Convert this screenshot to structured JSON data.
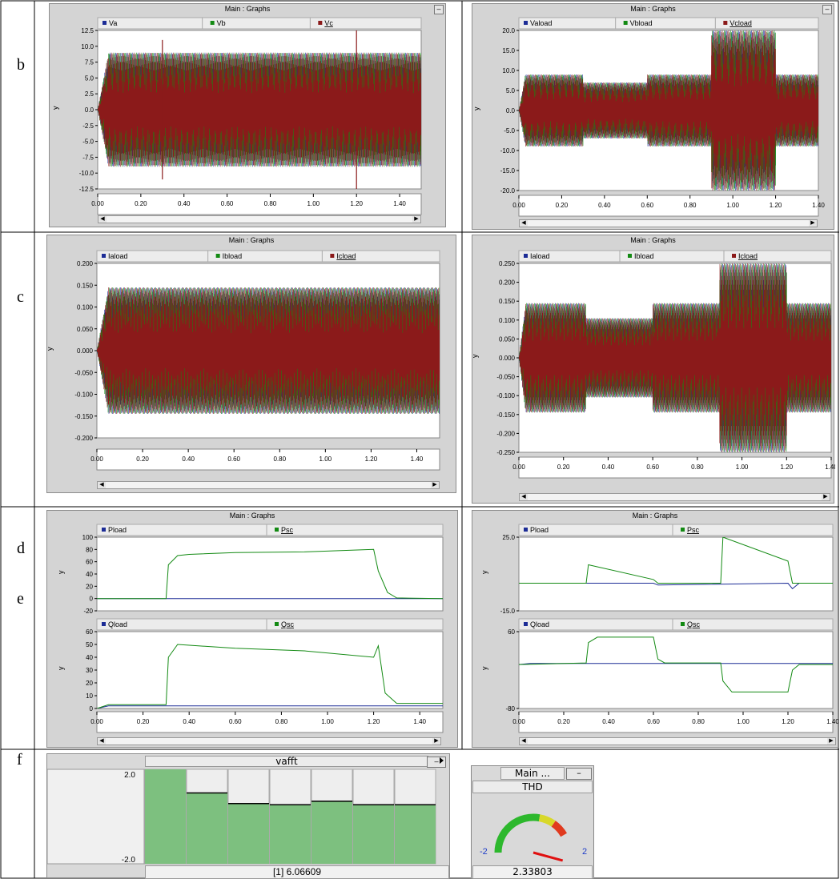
{
  "rows": [
    "b",
    "c",
    "d",
    "e",
    "f"
  ],
  "panel_title": "Main : Graphs",
  "y_axis_label": "y",
  "x_ticks": [
    "0.00",
    "0.20",
    "0.40",
    "0.60",
    "0.80",
    "1.00",
    "1.20",
    "1.40"
  ],
  "chart_data": [
    {
      "id": "b-left",
      "type": "line",
      "title": "Main : Graphs",
      "ylabel": "y",
      "legend": [
        "Va",
        "Vb",
        "Vc"
      ],
      "colors": [
        "#1c2c96",
        "#138a13",
        "#8b1a1a"
      ],
      "xlim": [
        0,
        1.5
      ],
      "ylim": [
        -12.5,
        12.5
      ],
      "yticks": [
        "12.5",
        "10.0",
        "7.5",
        "5.0",
        "2.5",
        "0.0",
        "-2.5",
        "-5.0",
        "-7.5",
        "-10.0",
        "-12.5"
      ],
      "series": [
        {
          "name": "Va",
          "amplitude_envelope": [
            [
              0,
              0
            ],
            [
              0.05,
              9
            ],
            [
              1.5,
              9
            ]
          ],
          "frequency_hz": 50
        },
        {
          "name": "Vb",
          "amplitude_envelope": [
            [
              0,
              0
            ],
            [
              0.05,
              9
            ],
            [
              1.5,
              9
            ]
          ],
          "frequency_hz": 50
        },
        {
          "name": "Vc",
          "amplitude_envelope": [
            [
              0,
              0
            ],
            [
              0.05,
              9
            ],
            [
              1.5,
              9
            ]
          ],
          "frequency_hz": 50
        }
      ],
      "spikes": [
        [
          0.3,
          11
        ],
        [
          1.2,
          12.5
        ]
      ]
    },
    {
      "id": "b-right",
      "type": "line",
      "title": "Main : Graphs",
      "ylabel": "y",
      "legend": [
        "Vaload",
        "Vbload",
        "Vcload"
      ],
      "colors": [
        "#1c2c96",
        "#138a13",
        "#8b1a1a"
      ],
      "xlim": [
        0,
        1.4
      ],
      "ylim": [
        -20,
        20
      ],
      "yticks": [
        "20.0",
        "15.0",
        "10.0",
        "5.0",
        "0.0",
        "-5.0",
        "-10.0",
        "-15.0",
        "-20.0"
      ],
      "series": [
        {
          "name": "Vaload",
          "amplitude_envelope": [
            [
              0,
              0
            ],
            [
              0.03,
              9
            ],
            [
              0.3,
              9
            ],
            [
              0.3,
              7
            ],
            [
              0.6,
              7
            ],
            [
              0.6,
              9
            ],
            [
              0.9,
              9
            ],
            [
              0.9,
              20
            ],
            [
              1.2,
              20
            ],
            [
              1.2,
              9
            ],
            [
              1.4,
              9
            ]
          ]
        },
        {
          "name": "Vbload",
          "amplitude_envelope": [
            [
              0,
              0
            ],
            [
              0.03,
              9
            ],
            [
              0.3,
              9
            ],
            [
              0.3,
              7
            ],
            [
              0.6,
              7
            ],
            [
              0.6,
              9
            ],
            [
              0.9,
              9
            ],
            [
              0.9,
              20
            ],
            [
              1.2,
              20
            ],
            [
              1.2,
              9
            ],
            [
              1.4,
              9
            ]
          ]
        },
        {
          "name": "Vcload",
          "amplitude_envelope": [
            [
              0,
              0
            ],
            [
              0.03,
              9
            ],
            [
              0.3,
              9
            ],
            [
              0.3,
              7
            ],
            [
              0.6,
              7
            ],
            [
              0.6,
              9
            ],
            [
              0.9,
              9
            ],
            [
              0.9,
              20
            ],
            [
              1.2,
              20
            ],
            [
              1.2,
              9
            ],
            [
              1.4,
              9
            ]
          ]
        }
      ]
    },
    {
      "id": "c-left",
      "type": "line",
      "title": "Main : Graphs",
      "ylabel": "y",
      "legend": [
        "Iaload",
        "Ibload",
        "Icload"
      ],
      "colors": [
        "#1c2c96",
        "#138a13",
        "#8b1a1a"
      ],
      "xlim": [
        0,
        1.5
      ],
      "ylim": [
        -0.2,
        0.2
      ],
      "yticks": [
        "0.200",
        "0.150",
        "0.100",
        "0.050",
        "0.000",
        "-0.050",
        "-0.100",
        "-0.150",
        "-0.200"
      ],
      "series": [
        {
          "name": "Iaload",
          "amplitude_envelope": [
            [
              0,
              0
            ],
            [
              0.05,
              0.145
            ],
            [
              1.5,
              0.145
            ]
          ]
        },
        {
          "name": "Ibload",
          "amplitude_envelope": [
            [
              0,
              0
            ],
            [
              0.05,
              0.145
            ],
            [
              1.5,
              0.145
            ]
          ]
        },
        {
          "name": "Icload",
          "amplitude_envelope": [
            [
              0,
              0
            ],
            [
              0.05,
              0.145
            ],
            [
              1.5,
              0.145
            ]
          ]
        }
      ]
    },
    {
      "id": "c-right",
      "type": "line",
      "title": "Main : Graphs",
      "ylabel": "y",
      "legend": [
        "Iaload",
        "Ibload",
        "Icload"
      ],
      "colors": [
        "#1c2c96",
        "#138a13",
        "#8b1a1a"
      ],
      "xlim": [
        0,
        1.4
      ],
      "ylim": [
        -0.25,
        0.25
      ],
      "yticks": [
        "0.250",
        "0.200",
        "0.150",
        "0.100",
        "0.050",
        "0.000",
        "-0.050",
        "-0.100",
        "-0.150",
        "-0.200",
        "-0.250"
      ],
      "series": [
        {
          "name": "Iaload",
          "amplitude_envelope": [
            [
              0,
              0
            ],
            [
              0.03,
              0.145
            ],
            [
              0.3,
              0.145
            ],
            [
              0.3,
              0.105
            ],
            [
              0.6,
              0.105
            ],
            [
              0.6,
              0.145
            ],
            [
              0.9,
              0.145
            ],
            [
              0.9,
              0.25
            ],
            [
              1.2,
              0.25
            ],
            [
              1.2,
              0.145
            ],
            [
              1.4,
              0.145
            ]
          ]
        },
        {
          "name": "Ibload",
          "amplitude_envelope": [
            [
              0,
              0
            ],
            [
              0.03,
              0.145
            ],
            [
              0.3,
              0.145
            ],
            [
              0.3,
              0.105
            ],
            [
              0.6,
              0.105
            ],
            [
              0.6,
              0.145
            ],
            [
              0.9,
              0.145
            ],
            [
              0.9,
              0.25
            ],
            [
              1.2,
              0.25
            ],
            [
              1.2,
              0.145
            ],
            [
              1.4,
              0.145
            ]
          ]
        },
        {
          "name": "Icload",
          "amplitude_envelope": [
            [
              0,
              0
            ],
            [
              0.03,
              0.145
            ],
            [
              0.3,
              0.145
            ],
            [
              0.3,
              0.105
            ],
            [
              0.6,
              0.105
            ],
            [
              0.6,
              0.145
            ],
            [
              0.9,
              0.145
            ],
            [
              0.9,
              0.25
            ],
            [
              1.2,
              0.25
            ],
            [
              1.2,
              0.145
            ],
            [
              1.4,
              0.145
            ]
          ]
        }
      ]
    },
    {
      "id": "d-left",
      "type": "line",
      "title": "Main : Graphs",
      "ylabel": "y",
      "legend": [
        "Pload",
        "Psc"
      ],
      "colors": [
        "#1c2c96",
        "#138a13"
      ],
      "xlim": [
        0,
        1.5
      ],
      "ylim": [
        -20,
        100
      ],
      "yticks": [
        "100",
        "80",
        "60",
        "40",
        "20",
        "0",
        "-20"
      ],
      "series": [
        {
          "name": "Pload",
          "points": [
            [
              0,
              0
            ],
            [
              1.5,
              0
            ]
          ]
        },
        {
          "name": "Psc",
          "points": [
            [
              0,
              0
            ],
            [
              0.3,
              0
            ],
            [
              0.31,
              55
            ],
            [
              0.35,
              70
            ],
            [
              0.4,
              72
            ],
            [
              0.6,
              75
            ],
            [
              0.9,
              76
            ],
            [
              1.2,
              80
            ],
            [
              1.22,
              45
            ],
            [
              1.26,
              10
            ],
            [
              1.3,
              1
            ],
            [
              1.5,
              0
            ]
          ]
        }
      ]
    },
    {
      "id": "e-left",
      "type": "line",
      "title": "",
      "ylabel": "y",
      "legend": [
        "Qload",
        "Qsc"
      ],
      "colors": [
        "#1c2c96",
        "#138a13"
      ],
      "xlim": [
        0,
        1.5
      ],
      "ylim": [
        0,
        60
      ],
      "yticks": [
        "60",
        "50",
        "40",
        "30",
        "20",
        "10",
        "0"
      ],
      "series": [
        {
          "name": "Qload",
          "points": [
            [
              0,
              0
            ],
            [
              0.05,
              2
            ],
            [
              1.5,
              2
            ]
          ]
        },
        {
          "name": "Qsc",
          "points": [
            [
              0,
              0
            ],
            [
              0.05,
              3
            ],
            [
              0.3,
              3
            ],
            [
              0.31,
              40
            ],
            [
              0.35,
              50
            ],
            [
              0.6,
              47
            ],
            [
              0.9,
              45
            ],
            [
              1.2,
              40
            ],
            [
              1.22,
              49
            ],
            [
              1.25,
              12
            ],
            [
              1.3,
              4
            ],
            [
              1.5,
              4
            ]
          ]
        }
      ]
    },
    {
      "id": "d-right",
      "type": "line",
      "title": "Main : Graphs",
      "ylabel": "y",
      "legend": [
        "Pload",
        "Psc"
      ],
      "colors": [
        "#1c2c96",
        "#138a13"
      ],
      "xlim": [
        0,
        1.4
      ],
      "ylim": [
        -15,
        25
      ],
      "yticks": [
        "25.0",
        "-15.0"
      ],
      "series": [
        {
          "name": "Pload",
          "points": [
            [
              0,
              0
            ],
            [
              0.6,
              0
            ],
            [
              0.62,
              -1
            ],
            [
              1.2,
              0
            ],
            [
              1.22,
              -3
            ],
            [
              1.25,
              0
            ],
            [
              1.4,
              0
            ]
          ]
        },
        {
          "name": "Psc",
          "points": [
            [
              0,
              0
            ],
            [
              0.3,
              0
            ],
            [
              0.31,
              10
            ],
            [
              0.6,
              2
            ],
            [
              0.62,
              0
            ],
            [
              0.9,
              0
            ],
            [
              0.91,
              25
            ],
            [
              1.2,
              12
            ],
            [
              1.22,
              0
            ],
            [
              1.4,
              0
            ]
          ]
        }
      ]
    },
    {
      "id": "e-right",
      "type": "line",
      "title": "",
      "ylabel": "y",
      "legend": [
        "Qload",
        "Qsc"
      ],
      "colors": [
        "#1c2c96",
        "#138a13"
      ],
      "xlim": [
        0,
        1.4
      ],
      "ylim": [
        -80,
        60
      ],
      "yticks": [
        "60",
        "-80"
      ],
      "series": [
        {
          "name": "Qload",
          "points": [
            [
              0,
              0
            ],
            [
              0.05,
              2
            ],
            [
              1.4,
              2
            ]
          ]
        },
        {
          "name": "Qsc",
          "points": [
            [
              0,
              0
            ],
            [
              0.3,
              3
            ],
            [
              0.31,
              40
            ],
            [
              0.35,
              50
            ],
            [
              0.6,
              50
            ],
            [
              0.62,
              10
            ],
            [
              0.65,
              3
            ],
            [
              0.9,
              3
            ],
            [
              0.91,
              -30
            ],
            [
              0.95,
              -50
            ],
            [
              1.2,
              -50
            ],
            [
              1.22,
              -10
            ],
            [
              1.25,
              0
            ],
            [
              1.4,
              0
            ]
          ]
        }
      ]
    },
    {
      "id": "f-vafft",
      "type": "bar",
      "title": "vafft",
      "ylim": [
        -2.0,
        2.0
      ],
      "yticks": [
        "2.0",
        "-2.0"
      ],
      "values": [
        2.0,
        1.0,
        0.55,
        0.5,
        0.65,
        0.5,
        0.5
      ],
      "readout": "[1]  6.06609"
    }
  ],
  "gauge": {
    "title": "Main ...",
    "label": "THD",
    "min": "-2",
    "max": "2",
    "value": 2.33803,
    "readout": "2.33803"
  }
}
